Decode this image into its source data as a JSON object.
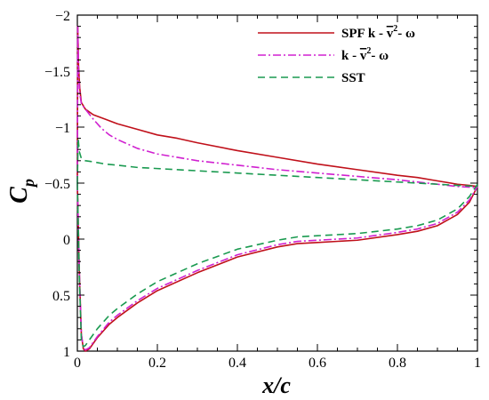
{
  "chart_data": {
    "type": "line",
    "xlabel": "x/c",
    "ylabel": "C",
    "ylabel_subscript": "p",
    "xlim": [
      0,
      1
    ],
    "ylim": [
      -2,
      1
    ],
    "y_inverted": true,
    "grid": false,
    "legend_position": "top-right",
    "xticks": [
      {
        "v": 0,
        "label": "0"
      },
      {
        "v": 0.2,
        "label": "0.2"
      },
      {
        "v": 0.4,
        "label": "0.4"
      },
      {
        "v": 0.6,
        "label": "0.6"
      },
      {
        "v": 0.8,
        "label": "0.8"
      },
      {
        "v": 1,
        "label": "1"
      }
    ],
    "yticks": [
      {
        "v": -2,
        "label": "−2"
      },
      {
        "v": -1.5,
        "label": "−1.5"
      },
      {
        "v": -1,
        "label": "−1"
      },
      {
        "v": -0.5,
        "label": "−0.5"
      },
      {
        "v": 0,
        "label": "0"
      },
      {
        "v": 0.5,
        "label": "0.5"
      },
      {
        "v": 1,
        "label": "1"
      }
    ],
    "series": [
      {
        "name": "SPF k - v²- ω",
        "name_main": "SPF k - ",
        "name_v": "v",
        "name_sup": "2",
        "name_tail": "- ω",
        "color": "#c0101a",
        "dash": "",
        "upper": {
          "x": [
            0,
            0.001,
            0.003,
            0.006,
            0.01,
            0.02,
            0.04,
            0.07,
            0.1,
            0.15,
            0.2,
            0.25,
            0.3,
            0.4,
            0.5,
            0.6,
            0.7,
            0.8,
            0.85,
            0.9,
            0.95,
            0.98,
            1.0
          ],
          "y": [
            -0.5,
            -1.9,
            -1.55,
            -1.35,
            -1.22,
            -1.16,
            -1.11,
            -1.07,
            -1.03,
            -0.98,
            -0.93,
            -0.9,
            -0.86,
            -0.79,
            -0.73,
            -0.67,
            -0.62,
            -0.57,
            -0.55,
            -0.52,
            -0.49,
            -0.48,
            -0.47
          ]
        },
        "lower": {
          "x": [
            0,
            0.005,
            0.01,
            0.015,
            0.02,
            0.03,
            0.05,
            0.08,
            0.1,
            0.15,
            0.2,
            0.3,
            0.4,
            0.5,
            0.55,
            0.6,
            0.7,
            0.8,
            0.85,
            0.9,
            0.95,
            0.98,
            1.0
          ],
          "y": [
            -0.5,
            0.3,
            0.85,
            0.98,
            1.0,
            0.98,
            0.88,
            0.76,
            0.7,
            0.57,
            0.46,
            0.3,
            0.16,
            0.07,
            0.04,
            0.03,
            0.01,
            -0.04,
            -0.07,
            -0.12,
            -0.22,
            -0.33,
            -0.47
          ]
        }
      },
      {
        "name": "k - v²- ω",
        "name_main": "k - ",
        "name_v": "v",
        "name_sup": "2",
        "name_tail": "- ω",
        "color": "#d020d0",
        "dash": "9,3,2,3",
        "upper": {
          "x": [
            0,
            0.001,
            0.003,
            0.006,
            0.01,
            0.02,
            0.04,
            0.06,
            0.08,
            0.1,
            0.15,
            0.2,
            0.3,
            0.4,
            0.5,
            0.6,
            0.7,
            0.8,
            0.9,
            0.95,
            1.0
          ],
          "y": [
            -0.5,
            -1.9,
            -1.5,
            -1.3,
            -1.21,
            -1.16,
            -1.07,
            -0.99,
            -0.93,
            -0.89,
            -0.81,
            -0.76,
            -0.7,
            -0.66,
            -0.62,
            -0.59,
            -0.56,
            -0.53,
            -0.49,
            -0.47,
            -0.46
          ]
        },
        "lower": {
          "x": [
            0,
            0.005,
            0.01,
            0.015,
            0.02,
            0.03,
            0.05,
            0.08,
            0.1,
            0.15,
            0.2,
            0.3,
            0.4,
            0.5,
            0.55,
            0.6,
            0.7,
            0.8,
            0.85,
            0.9,
            0.95,
            0.98,
            1.0
          ],
          "y": [
            -0.5,
            0.3,
            0.85,
            0.97,
            0.99,
            0.97,
            0.87,
            0.74,
            0.68,
            0.55,
            0.44,
            0.28,
            0.14,
            0.05,
            0.02,
            0.01,
            -0.01,
            -0.06,
            -0.09,
            -0.14,
            -0.24,
            -0.35,
            -0.47
          ]
        }
      },
      {
        "name": "SST",
        "name_main": "SST",
        "name_v": "",
        "name_sup": "",
        "name_tail": "",
        "color": "#1a9a50",
        "dash": "8,5",
        "upper": {
          "x": [
            0,
            0.002,
            0.005,
            0.01,
            0.02,
            0.04,
            0.07,
            0.1,
            0.15,
            0.2,
            0.3,
            0.4,
            0.5,
            0.6,
            0.7,
            0.8,
            0.9,
            0.95,
            1.0
          ],
          "y": [
            -0.5,
            -0.9,
            -0.78,
            -0.72,
            -0.7,
            -0.69,
            -0.67,
            -0.66,
            -0.64,
            -0.63,
            -0.61,
            -0.59,
            -0.57,
            -0.55,
            -0.53,
            -0.51,
            -0.49,
            -0.48,
            -0.47
          ]
        },
        "lower": {
          "x": [
            0,
            0.005,
            0.01,
            0.015,
            0.02,
            0.03,
            0.05,
            0.08,
            0.1,
            0.15,
            0.2,
            0.3,
            0.4,
            0.5,
            0.55,
            0.6,
            0.7,
            0.8,
            0.85,
            0.9,
            0.95,
            0.98,
            1.0
          ],
          "y": [
            -0.5,
            0.35,
            0.9,
            0.96,
            0.95,
            0.9,
            0.8,
            0.68,
            0.62,
            0.49,
            0.38,
            0.22,
            0.09,
            0.01,
            -0.02,
            -0.03,
            -0.05,
            -0.09,
            -0.12,
            -0.17,
            -0.27,
            -0.38,
            -0.49
          ]
        }
      }
    ]
  }
}
